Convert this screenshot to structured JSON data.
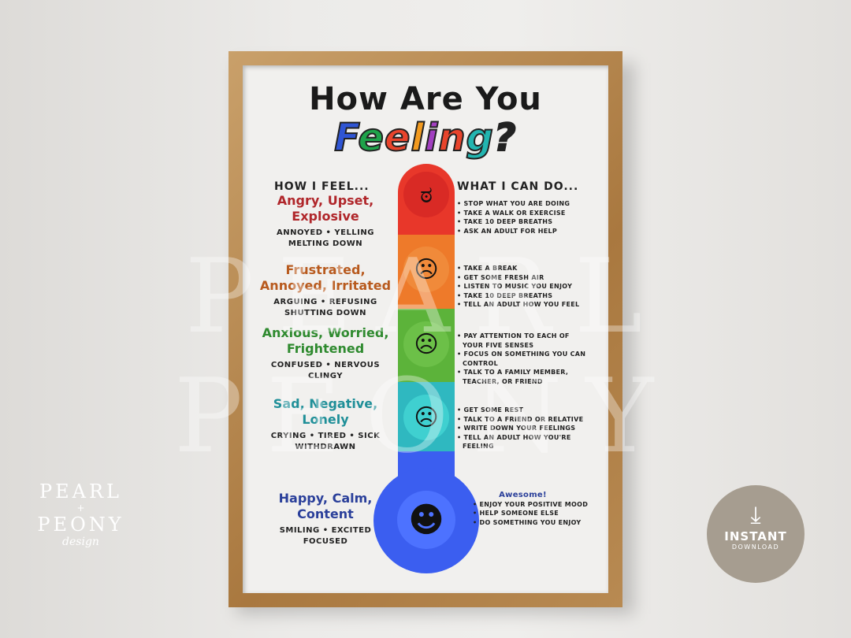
{
  "poster": {
    "title_line1": "How Are You",
    "title_line2": [
      "F",
      "e",
      "e",
      "l",
      "i",
      "n",
      "g",
      "?"
    ],
    "title_colors": [
      "#2f55d4",
      "#1fa34a",
      "#e8442c",
      "#f29a1f",
      "#a23fc0",
      "#e8442c",
      "#22b5b0",
      "#222"
    ],
    "left_header": "HOW I FEEL...",
    "right_header": "WHAT I CAN DO...",
    "levels": [
      {
        "feeling": "Angry, Upset, Explosive",
        "details": "ANNOYED • YELLING MELTING DOWN",
        "color": "#b0262a",
        "segment_color": "#e8372a",
        "face": "angry-face-icon",
        "tips": [
          "STOP WHAT YOU ARE DOING",
          "TAKE A WALK OR EXERCISE",
          "TAKE 10 DEEP BREATHS",
          "ASK AN ADULT FOR HELP"
        ]
      },
      {
        "feeling": "Frustrated, Annoyed, Irritated",
        "details": "ARGUING • REFUSING SHUTTING DOWN",
        "color": "#b85a1e",
        "segment_color": "#ee7a2a",
        "face": "frustrated-face-icon",
        "tips": [
          "TAKE A BREAK",
          "GET SOME FRESH AIR",
          "LISTEN TO MUSIC YOU ENJOY",
          "TAKE 10 DEEP BREATHS",
          "TELL AN ADULT HOW YOU FEEL"
        ]
      },
      {
        "feeling": "Anxious, Worried, Frightened",
        "details": "CONFUSED • NERVOUS CLINGY",
        "color": "#2f8a2f",
        "segment_color": "#5cb33a",
        "face": "worried-face-icon",
        "tips": [
          "PAY ATTENTION TO EACH OF YOUR FIVE SENSES",
          "FOCUS ON SOMETHING YOU CAN CONTROL",
          "TALK TO A FAMILY MEMBER, TEACHER, OR FRIEND"
        ]
      },
      {
        "feeling": "Sad, Negative, Lonely",
        "details": "CRYING • TIRED • SICK WITHDRAWN",
        "color": "#1f8f98",
        "segment_color": "#2fb8c0",
        "face": "sad-face-icon",
        "tips": [
          "GET SOME REST",
          "TALK TO A FRIEND OR RELATIVE",
          "WRITE DOWN YOUR FEELINGS",
          "TELL AN ADULT HOW YOU'RE FEELING"
        ]
      },
      {
        "feeling": "Happy, Calm, Content",
        "details": "SMILING • EXCITED FOCUSED",
        "color": "#2a3f9a",
        "segment_color": "#3b5ef0",
        "face": "happy-face-icon",
        "heading": "Awesome!",
        "tips": [
          "ENJOY YOUR POSITIVE MOOD",
          "HELP SOMEONE ELSE",
          "DO SOMETHING YOU ENJOY"
        ]
      }
    ]
  },
  "watermark": "PEARL PEONY",
  "logo": {
    "line1": "PEARL",
    "line2": "+",
    "line3": "PEONY",
    "line4": "design"
  },
  "badge": {
    "line1": "INSTANT",
    "line2": "DOWNLOAD",
    "icon": "download-icon"
  }
}
